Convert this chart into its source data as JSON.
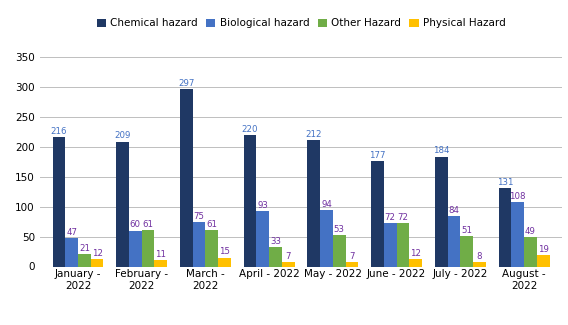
{
  "months": [
    "January -\n2022",
    "February -\n2022",
    "March -\n2022",
    "April - 2022",
    "May - 2022",
    "June - 2022",
    "July - 2022",
    "August -\n2022"
  ],
  "series": {
    "Chemical hazard": [
      216,
      209,
      297,
      220,
      212,
      177,
      184,
      131
    ],
    "Biological hazard": [
      47,
      60,
      75,
      93,
      94,
      72,
      84,
      108
    ],
    "Other Hazard": [
      21,
      61,
      61,
      33,
      53,
      72,
      51,
      49
    ],
    "Physical Hazard": [
      12,
      11,
      15,
      7,
      7,
      12,
      8,
      19
    ]
  },
  "colors": {
    "Chemical hazard": "#1F3864",
    "Biological hazard": "#4472C4",
    "Other Hazard": "#70AD47",
    "Physical Hazard": "#FFC000"
  },
  "label_colors": {
    "Chemical hazard": "#4472C4",
    "Biological hazard": "#7030A0",
    "Other Hazard": "#7030A0",
    "Physical Hazard": "#7030A0"
  },
  "ylim": [
    0,
    370
  ],
  "yticks": [
    0,
    50,
    100,
    150,
    200,
    250,
    300,
    350
  ],
  "background_color": "#FFFFFF",
  "grid_color": "#BFBFBF",
  "bar_width": 0.2,
  "label_fontsize": 6.2,
  "tick_fontsize": 7.5,
  "legend_fontsize": 7.5
}
